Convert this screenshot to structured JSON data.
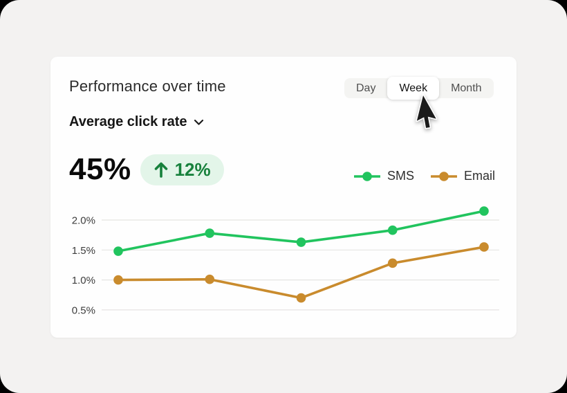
{
  "card": {
    "title": "Performance over time",
    "metric_selector": {
      "label": "Average click rate"
    },
    "stat": {
      "value": "45%",
      "delta": "12%",
      "delta_direction": "up"
    },
    "range_toggle": {
      "options": [
        {
          "label": "Day",
          "selected": false
        },
        {
          "label": "Week",
          "selected": true
        },
        {
          "label": "Month",
          "selected": false
        }
      ]
    }
  },
  "legend": [
    {
      "label": "SMS",
      "color": "#21c45e"
    },
    {
      "label": "Email",
      "color": "#c98b2d"
    }
  ],
  "colors": {
    "badge_bg": "#e3f5e9",
    "badge_text": "#17813c",
    "sms_line": "#21c45e",
    "email_line": "#c98b2d",
    "gridline": "#e5e4e2",
    "tick_label": "#3d3d3d"
  },
  "chart_data": {
    "type": "line",
    "x": [
      1,
      2,
      3,
      4,
      5
    ],
    "series": [
      {
        "name": "SMS",
        "color": "#21c45e",
        "values": [
          1.48,
          1.78,
          1.63,
          1.83,
          2.15
        ]
      },
      {
        "name": "Email",
        "color": "#c98b2d",
        "values": [
          1.0,
          1.01,
          0.7,
          1.28,
          1.55
        ]
      }
    ],
    "ytick_labels": [
      "2.0%",
      "1.5%",
      "1.0%",
      "0.5%"
    ],
    "ytick_values": [
      2.0,
      1.5,
      1.0,
      0.5
    ],
    "ylim": [
      0.35,
      2.3
    ],
    "grid": "horizontal",
    "legend_position": "top-right",
    "title": "",
    "xlabel": "",
    "ylabel": ""
  }
}
